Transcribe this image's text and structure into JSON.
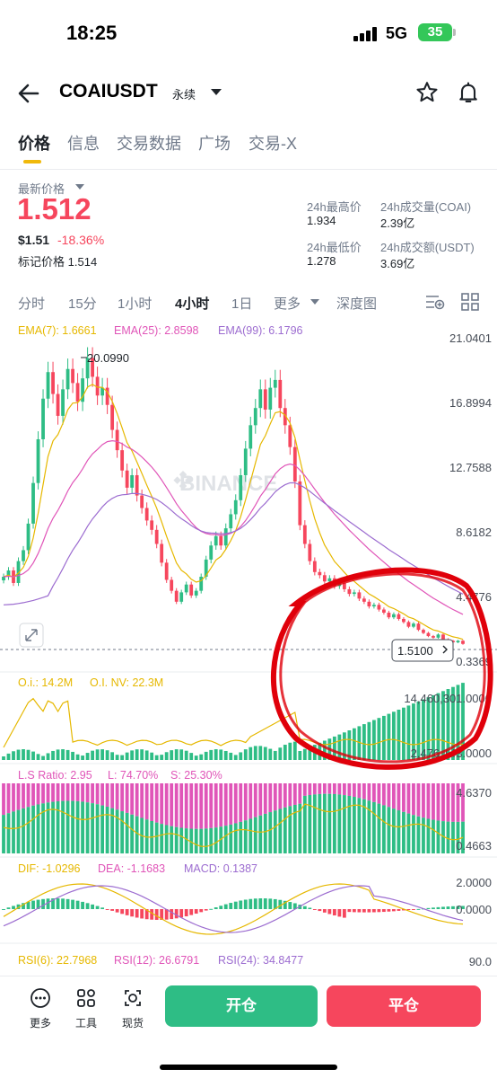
{
  "status_bar": {
    "time": "18:25",
    "network": "5G",
    "battery": "35"
  },
  "header": {
    "symbol": "COAIUSDT",
    "contract_type": "永续",
    "icons": [
      "back-arrow-icon",
      "caret-down-icon",
      "star-icon",
      "bell-icon"
    ]
  },
  "tabs": [
    {
      "label": "价格",
      "active": true
    },
    {
      "label": "信息",
      "active": false
    },
    {
      "label": "交易数据",
      "active": false
    },
    {
      "label": "广场",
      "active": false
    },
    {
      "label": "交易-X",
      "active": false
    }
  ],
  "price": {
    "label": "最新价格",
    "last": "1.512",
    "usd": "$1.51",
    "change": "-18.36%",
    "mark_label": "标记价格",
    "mark_value": "1.514",
    "stats": {
      "high_label": "24h最高价",
      "high": "1.934",
      "low_label": "24h最低价",
      "low": "1.278",
      "vol_coin_label": "24h成交量(COAI)",
      "vol_coin": "2.39亿",
      "vol_usdt_label": "24h成交额(USDT)",
      "vol_usdt": "3.69亿"
    }
  },
  "intervals": [
    {
      "label": "分时",
      "active": false
    },
    {
      "label": "15分",
      "active": false
    },
    {
      "label": "1小时",
      "active": false
    },
    {
      "label": "4小时",
      "active": true
    },
    {
      "label": "1日",
      "active": false
    },
    {
      "label": "更多",
      "active": false
    },
    {
      "label": "深度图",
      "active": false
    }
  ],
  "colors": {
    "up": "#2ebd85",
    "down": "#f6465d",
    "accent": "#f0b90b",
    "ema7": "#e6b800",
    "ema25": "#e055b8",
    "ema99": "#9c6cd0",
    "annotation": "#e0000a"
  },
  "chart_data": {
    "type": "candlestick",
    "watermark": "BINANCE",
    "ema_labels": {
      "ema7": "EMA(7): 1.6661",
      "ema25": "EMA(25): 2.8598",
      "ema99": "EMA(99): 6.1796"
    },
    "y_ticks": [
      "21.0401",
      "16.8994",
      "12.7588",
      "8.6182",
      "4.4776",
      "0.3369"
    ],
    "ylim": [
      0.3369,
      21.0401
    ],
    "max_marker": "20.0990",
    "current_price_tag": "1.5100",
    "closes": [
      5.8,
      6.2,
      5.4,
      6.8,
      7.5,
      9.2,
      11.8,
      14.6,
      17.2,
      18.9,
      17.5,
      16.1,
      17.8,
      19.1,
      18.2,
      17.0,
      18.5,
      19.8,
      18.6,
      17.4,
      17.9,
      16.8,
      15.2,
      13.9,
      12.6,
      11.5,
      12.3,
      11.0,
      10.2,
      9.4,
      8.8,
      7.9,
      6.7,
      5.6,
      4.9,
      4.2,
      4.8,
      5.3,
      4.6,
      4.9,
      5.8,
      6.9,
      7.8,
      8.4,
      7.8,
      8.9,
      9.8,
      10.7,
      12.3,
      14.0,
      15.5,
      16.6,
      17.8,
      16.5,
      17.9,
      18.4,
      16.6,
      15.5,
      14.1,
      11.9,
      9.1,
      7.9,
      6.8,
      6.1,
      5.9,
      5.5,
      5.7,
      5.2,
      5.4,
      5.0,
      4.7,
      4.8,
      4.4,
      4.2,
      3.9,
      4.0,
      3.7,
      3.5,
      3.2,
      3.4,
      3.1,
      2.9,
      2.6,
      2.8,
      2.4,
      2.2,
      2.0,
      1.9,
      2.1,
      1.8,
      1.7,
      1.6,
      1.7,
      1.5
    ],
    "oi_labels": {
      "oi": "O.i.: 14.2M",
      "oi_nv": "O.I. NV: 22.3M"
    },
    "oi_ticks": [
      "14,460,301.0000",
      "2,476,143.0000"
    ],
    "ls_labels": {
      "ratio": "L.S Ratio: 2.95",
      "long": "L: 74.70%",
      "short": "S: 25.30%"
    },
    "ls_ticks": [
      "4.6370",
      "0.4663"
    ],
    "macd_labels": {
      "dif": "DIF: -1.0296",
      "dea": "DEA: -1.1683",
      "macd": "MACD: 0.1387"
    },
    "macd_ticks": [
      "2.0000",
      "0.0000"
    ],
    "rsi_labels": {
      "rsi6": "RSI(6): 22.7968",
      "rsi12": "RSI(12): 26.6791",
      "rsi24": "RSI(24): 34.8477"
    },
    "rsi_ticks": [
      "90.0"
    ]
  },
  "bottom_bar": {
    "more": "更多",
    "tools": "工具",
    "spot": "现货",
    "open": "开仓",
    "close": "平仓"
  }
}
